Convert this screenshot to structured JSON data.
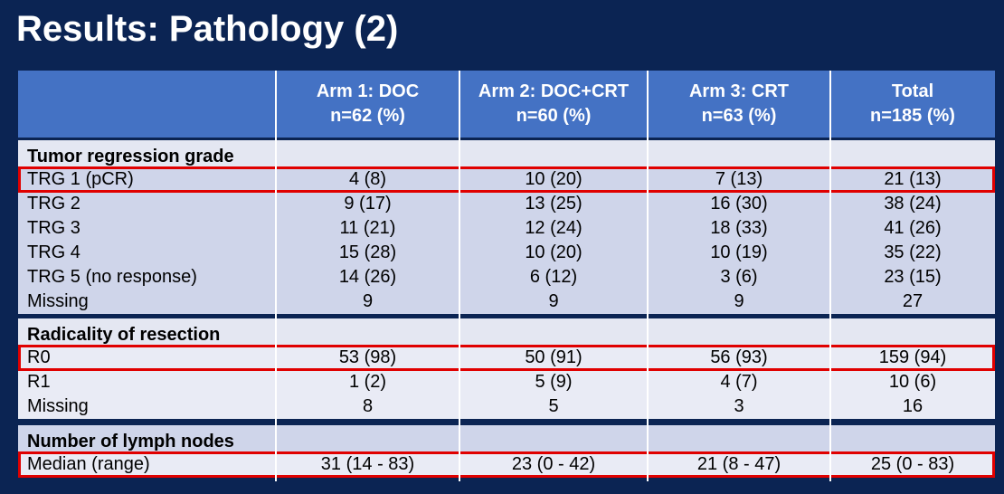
{
  "title": "Results: Pathology (2)",
  "table": {
    "header": [
      [],
      [
        "Arm 1: DOC",
        "n=62 (%)"
      ],
      [
        "Arm 2: DOC+CRT",
        "n=60 (%)"
      ],
      [
        "Arm 3: CRT",
        "n=63 (%)"
      ],
      [
        "Total",
        "n=185 (%)"
      ]
    ],
    "sections": [
      {
        "title": "Tumor regression grade",
        "rows": [
          [
            "TRG 1 (pCR)",
            "4 (8)",
            "10 (20)",
            "7 (13)",
            "21 (13)"
          ],
          [
            "TRG 2",
            "9 (17)",
            "13 (25)",
            "16 (30)",
            "38 (24)"
          ],
          [
            "TRG 3",
            "11 (21)",
            "12 (24)",
            "18 (33)",
            "41 (26)"
          ],
          [
            "TRG 4",
            "15 (28)",
            "10 (20)",
            "10 (19)",
            "35 (22)"
          ],
          [
            "TRG 5 (no response)",
            "14 (26)",
            "6 (12)",
            "3 (6)",
            "23 (15)"
          ],
          [
            "Missing",
            "9",
            "9",
            "9",
            "27"
          ]
        ]
      },
      {
        "title": "Radicality of resection",
        "rows": [
          [
            "R0",
            "53 (98)",
            "50 (91)",
            "56 (93)",
            "159 (94)"
          ],
          [
            "R1",
            "1 (2)",
            "5 (9)",
            "4 (7)",
            "10 (6)"
          ],
          [
            "Missing",
            "8",
            "5",
            "3",
            "16"
          ]
        ]
      },
      {
        "title": "Number of lymph nodes",
        "rows": [
          [
            "Median (range)",
            "31 (14 - 83)",
            "23 (0 - 42)",
            "21 (8 - 47)",
            "25 (0 - 83)"
          ]
        ]
      }
    ]
  }
}
